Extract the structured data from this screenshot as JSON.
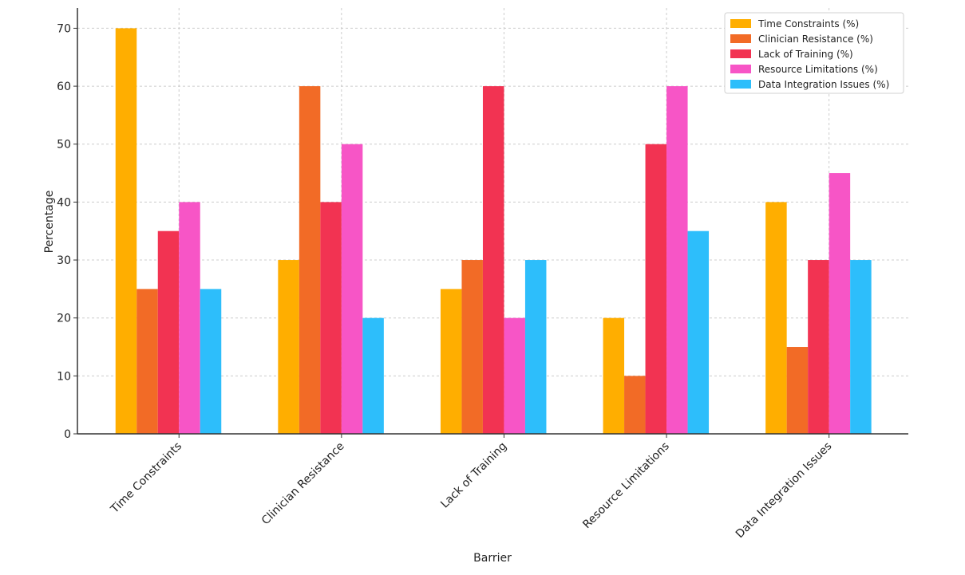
{
  "chart_data": {
    "type": "bar",
    "title": "",
    "xlabel": "Barrier",
    "ylabel": "Percentage",
    "categories": [
      "Time Constraints",
      "Clinician Resistance",
      "Lack of Training",
      "Resource Limitations",
      "Data Integration Issues"
    ],
    "series": [
      {
        "name": "Time Constraints (%)",
        "color": "#FFAE00",
        "values": [
          70,
          30,
          25,
          20,
          40
        ]
      },
      {
        "name": "Clinician Resistance (%)",
        "color": "#F26B26",
        "values": [
          25,
          60,
          30,
          10,
          15
        ]
      },
      {
        "name": "Lack of Training (%)",
        "color": "#F23352",
        "values": [
          35,
          40,
          60,
          50,
          30
        ]
      },
      {
        "name": "Resource Limitations (%)",
        "color": "#F755C6",
        "values": [
          40,
          50,
          20,
          60,
          45
        ]
      },
      {
        "name": "Data Integration Issues (%)",
        "color": "#2DBEFB",
        "values": [
          25,
          20,
          30,
          35,
          30
        ]
      }
    ],
    "yticks": [
      0,
      10,
      20,
      30,
      40,
      50,
      60,
      70
    ],
    "ylim": [
      0,
      73.5
    ],
    "grid": true,
    "legend_position": "top-right"
  }
}
